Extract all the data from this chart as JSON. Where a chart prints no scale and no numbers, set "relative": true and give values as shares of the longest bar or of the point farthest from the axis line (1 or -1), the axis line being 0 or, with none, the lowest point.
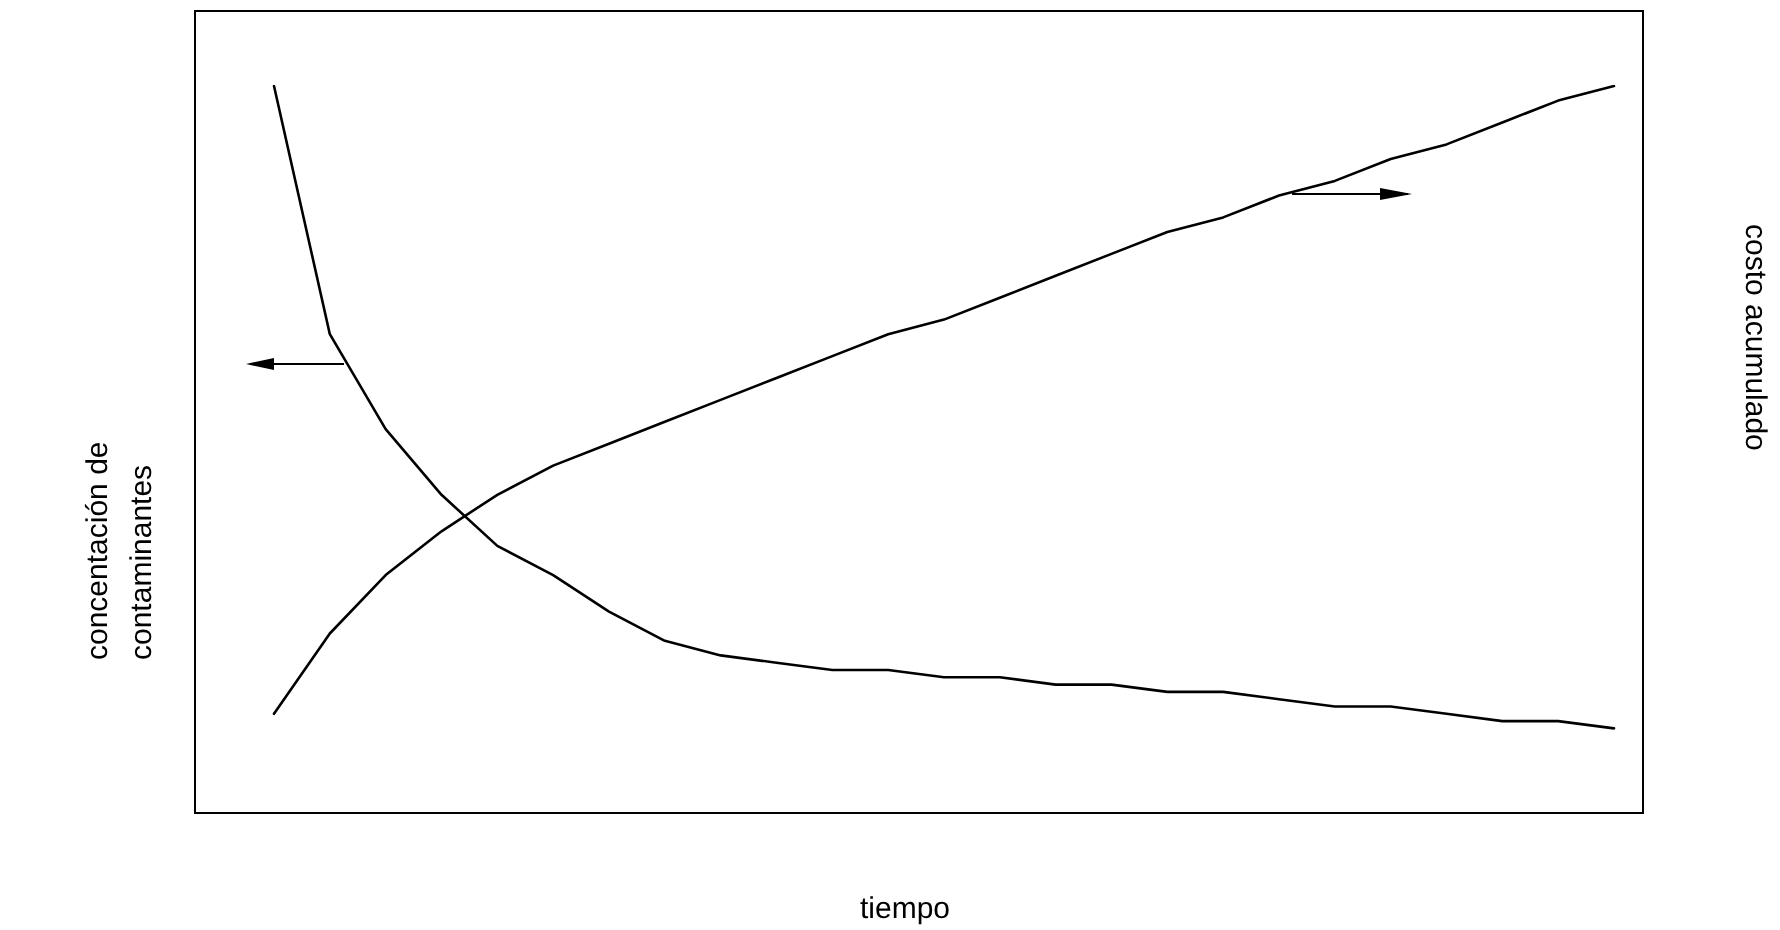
{
  "chart_data": {
    "type": "line",
    "relative": true,
    "marker": "none",
    "xlabel": "tiempo",
    "ylabel": "concentación de contaminantes",
    "y2label": "costo acumulado",
    "categories": [
      null,
      null,
      null,
      null,
      null,
      null,
      null,
      null,
      null,
      null,
      null,
      null,
      null,
      null,
      null,
      null,
      null,
      null,
      null,
      null,
      null,
      null,
      null,
      null,
      null
    ],
    "series": [
      {
        "color": "#000000",
        "values": [
          1,
          0.66,
          0.53,
          0.44,
          0.37,
          0.33,
          0.28,
          0.24,
          0.22,
          0.21,
          0.2,
          0.2,
          0.19,
          0.19,
          0.18,
          0.18,
          0.17,
          0.17,
          0.16,
          0.15,
          0.15,
          0.14,
          0.13,
          0.13,
          0.12
        ]
      },
      {
        "color": "#000000",
        "values": [
          0.14,
          0.25,
          0.33,
          0.39,
          0.44,
          0.48,
          0.51,
          0.54,
          0.57,
          0.6,
          0.63,
          0.66,
          0.68,
          0.71,
          0.74,
          0.77,
          0.8,
          0.82,
          0.85,
          0.87,
          0.9,
          0.92,
          0.95,
          0.98,
          1
        ]
      }
    ]
  }
}
